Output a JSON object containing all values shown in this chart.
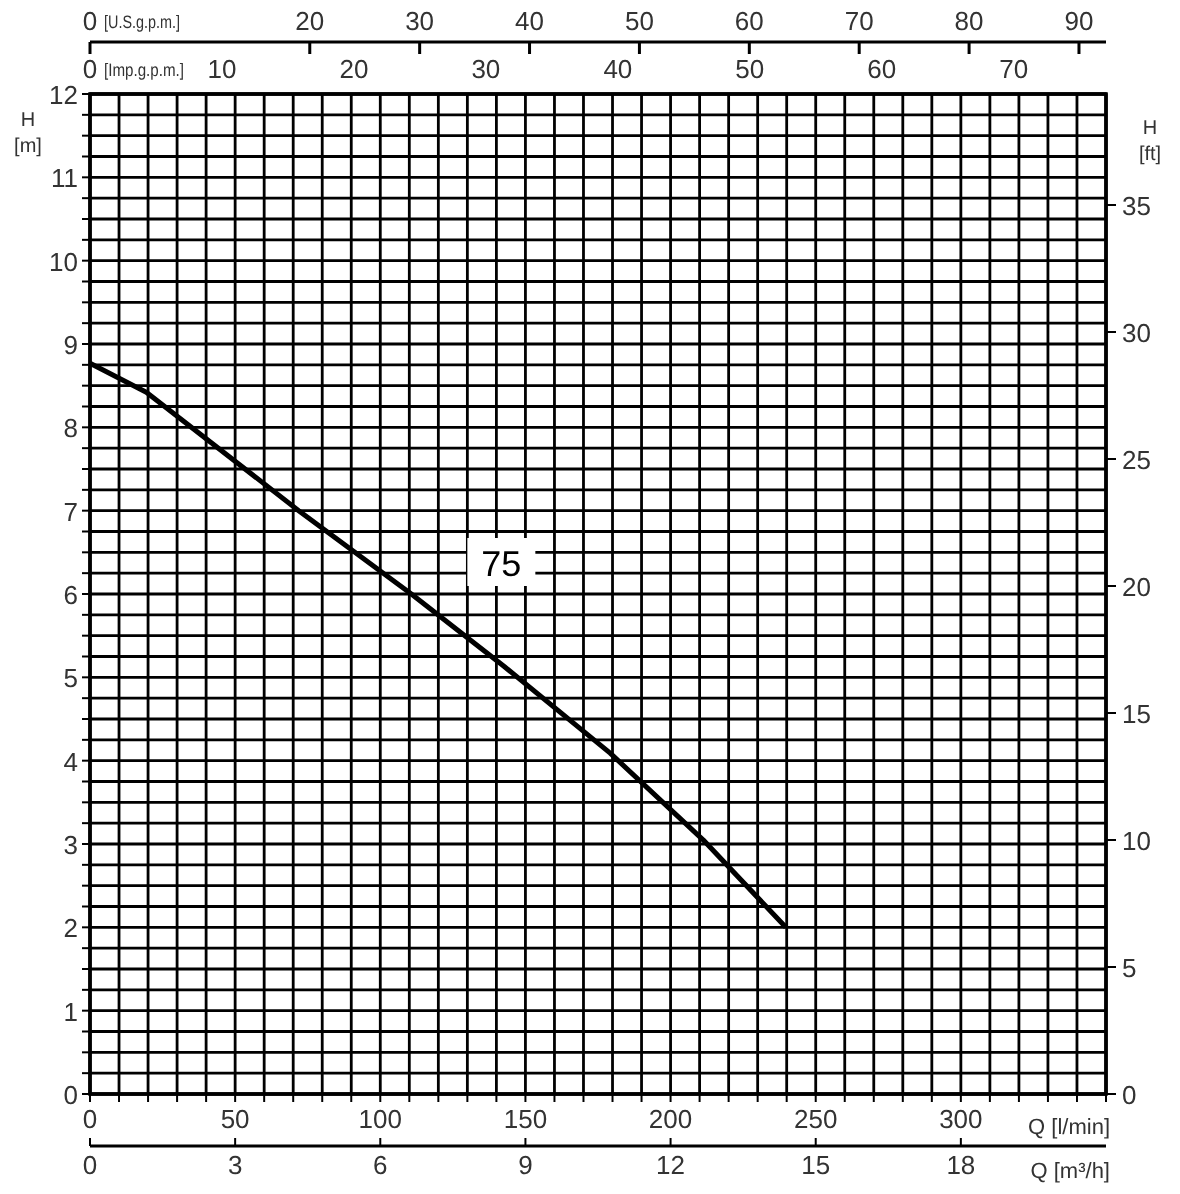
{
  "chart_data": [
    {
      "type": "line",
      "xlabel": "Q [l/min]",
      "ylabel": "H [m]",
      "y2label": "H [ft]",
      "x2label": "[U.S.g.p.m.]",
      "xlim": [
        0,
        350
      ],
      "xticks": [
        0,
        {
          "value": 10,
          "label": null
        },
        {
          "value": 20,
          "label": null
        },
        {
          "value": 30,
          "label": null
        },
        {
          "value": 40,
          "label": null
        },
        50,
        {
          "value": 60,
          "label": null
        },
        {
          "value": 70,
          "label": null
        },
        {
          "value": 80,
          "label": null
        },
        {
          "value": 90,
          "label": null
        },
        100,
        {
          "value": 110,
          "label": null
        },
        {
          "value": 120,
          "label": null
        },
        {
          "value": 130,
          "label": null
        },
        {
          "value": 140,
          "label": null
        },
        150,
        {
          "value": 160,
          "label": null
        },
        {
          "value": 170,
          "label": null
        },
        {
          "value": 180,
          "label": null
        },
        {
          "value": 190,
          "label": null
        },
        200,
        {
          "value": 210,
          "label": null
        },
        {
          "value": 220,
          "label": null
        },
        {
          "value": 230,
          "label": null
        },
        {
          "value": 240,
          "label": null
        },
        250,
        {
          "value": 260,
          "label": null
        },
        {
          "value": 270,
          "label": null
        },
        {
          "value": 280,
          "label": null
        },
        {
          "value": 290,
          "label": null
        },
        300,
        {
          "value": 310,
          "label": null
        },
        {
          "value": 320,
          "label": null
        },
        {
          "value": 330,
          "label": null
        },
        {
          "value": 340,
          "label": null
        },
        {
          "value": 350,
          "label": null
        }
      ],
      "ylim": [
        0,
        12
      ],
      "yticks": [
        0,
        {
          "value": 0.25,
          "label": null
        },
        {
          "value": 0.5,
          "label": null
        },
        {
          "value": 0.75,
          "label": null
        },
        1,
        {
          "value": 1.25,
          "label": null
        },
        {
          "value": 1.5,
          "label": null
        },
        {
          "value": 1.75,
          "label": null
        },
        2,
        {
          "value": 2.25,
          "label": null
        },
        {
          "value": 2.5,
          "label": null
        },
        {
          "value": 2.75,
          "label": null
        },
        3,
        {
          "value": 3.25,
          "label": null
        },
        {
          "value": 3.5,
          "label": null
        },
        {
          "value": 3.75,
          "label": null
        },
        4,
        {
          "value": 4.25,
          "label": null
        },
        {
          "value": 4.5,
          "label": null
        },
        {
          "value": 4.75,
          "label": null
        },
        5,
        {
          "value": 5.25,
          "label": null
        },
        {
          "value": 5.5,
          "label": null
        },
        {
          "value": 5.75,
          "label": null
        },
        6,
        {
          "value": 6.25,
          "label": null
        },
        {
          "value": 6.5,
          "label": null
        },
        {
          "value": 6.75,
          "label": null
        },
        7,
        {
          "value": 7.25,
          "label": null
        },
        {
          "value": 7.5,
          "label": null
        },
        {
          "value": 7.75,
          "label": null
        },
        8,
        {
          "value": 8.25,
          "label": null
        },
        {
          "value": 8.5,
          "label": null
        },
        {
          "value": 8.75,
          "label": null
        },
        9,
        {
          "value": 9.25,
          "label": null
        },
        {
          "value": 9.5,
          "label": null
        },
        {
          "value": 9.75,
          "label": null
        },
        10,
        {
          "value": 10.25,
          "label": null
        },
        {
          "value": 10.5,
          "label": null
        },
        {
          "value": 10.75,
          "label": null
        },
        11,
        {
          "value": 11.25,
          "label": null
        },
        {
          "value": 11.5,
          "label": null
        },
        {
          "value": 11.75,
          "label": null
        },
        12
      ],
      "y2lim": [
        0,
        39.37
      ],
      "y2ticks": [
        0,
        5,
        10,
        15,
        20,
        25,
        30,
        35
      ],
      "x2lim": [
        0,
        92.46
      ],
      "x2ticks": [
        0,
        20,
        30,
        40,
        50,
        60,
        70,
        80,
        90
      ],
      "grid": true,
      "marker": "none",
      "line_style": "solid",
      "series": [
        {
          "name": "75",
          "color": "#000000",
          "x": [
            0,
            19.4,
            71.9,
            110.7,
            142.7,
            179.2,
            211.2,
            239.7
          ],
          "values": [
            8.77,
            8.42,
            7.0,
            6.0,
            5.13,
            4.09,
            3.05,
            2.0
          ]
        }
      ]
    },
    {
      "type": "line",
      "xlabel": "[Imp.g.p.m.]",
      "xlim": [
        0,
        76.99
      ],
      "xticks": [
        0,
        10,
        20,
        30,
        40,
        50,
        60,
        70
      ],
      "ylim": [
        0,
        12
      ],
      "tick_labels": "x"
    },
    {
      "type": "line",
      "xlabel": "Q [m³/h]",
      "xlim": [
        0,
        21
      ],
      "xticks": [
        0,
        3,
        6,
        9,
        12,
        15,
        18
      ],
      "ylim": [
        0,
        12
      ],
      "tick_labels": "x"
    }
  ]
}
